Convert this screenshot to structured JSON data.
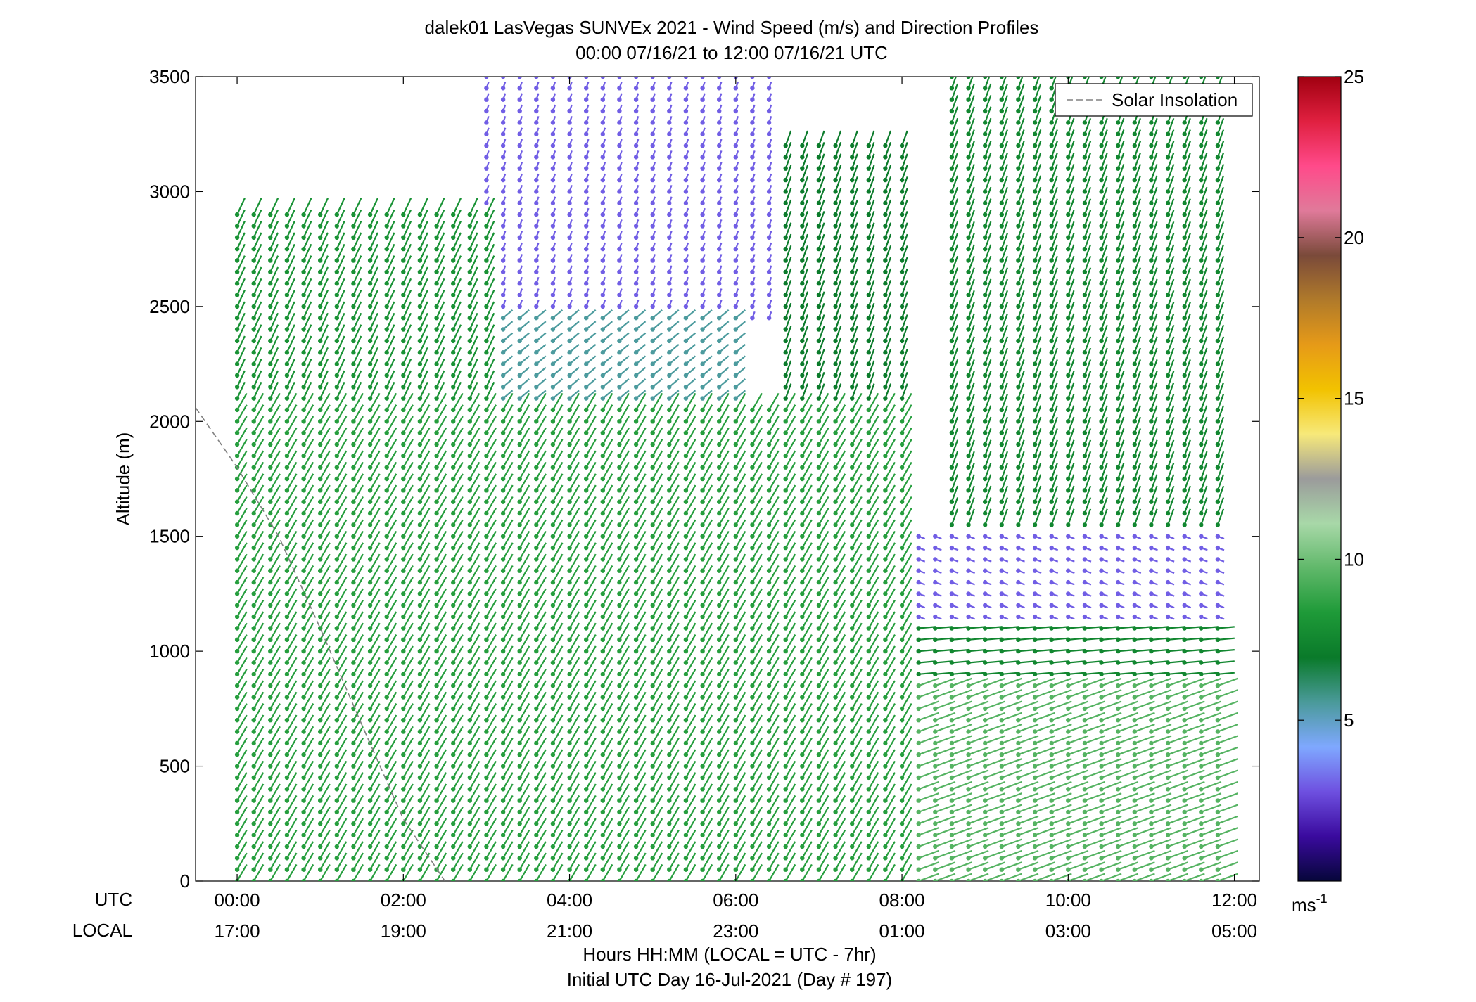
{
  "chart_data": {
    "type": "scatter",
    "subtype": "wind-barb-profile",
    "title_line1": "dalek01 LasVegas SUNVEx 2021 - Wind Speed (m/s) and Direction Profiles",
    "title_line2": "00:00 07/16/21 to 12:00 07/16/21  UTC",
    "ylabel": "Altitude (m)",
    "xlabel_line1": "Hours HH:MM  (LOCAL = UTC - 7hr)",
    "xlabel_line2": "Initial UTC Day 16-Jul-2021 (Day # 197)",
    "utc_row_label": "UTC",
    "local_row_label": "LOCAL",
    "xlim_hours": [
      -0.5,
      12.3
    ],
    "ylim": [
      0,
      3500
    ],
    "yticks": [
      "0",
      "500",
      "1000",
      "1500",
      "2000",
      "2500",
      "3000",
      "3500"
    ],
    "utc_ticks": [
      "00:00",
      "02:00",
      "04:00",
      "06:00",
      "08:00",
      "10:00",
      "12:00"
    ],
    "local_ticks": [
      "17:00",
      "19:00",
      "21:00",
      "23:00",
      "01:00",
      "03:00",
      "05:00"
    ],
    "tick_hours": [
      0,
      2,
      4,
      6,
      8,
      10,
      12
    ],
    "profile_start_hour": 0,
    "profile_interval_hours": 0.2,
    "profile_count": 60,
    "altitude_step_m": 50,
    "legend": {
      "position": "top-right",
      "label": "Solar Insolation"
    },
    "solar_insolation_line": {
      "hours": [
        -0.5,
        0.0,
        0.5,
        1.0,
        1.5,
        2.0,
        2.5
      ],
      "altitude": [
        2060,
        1800,
        1500,
        1100,
        680,
        270,
        0
      ],
      "color": "#808080",
      "style": "dashed"
    },
    "colorbar": {
      "min": 0,
      "max": 25,
      "ticks": [
        "5",
        "10",
        "15",
        "20",
        "25"
      ],
      "unit": "ms",
      "unit_exponent": "-1",
      "colormap": [
        "#06063a",
        "#3a0a9e",
        "#6e50e0",
        "#7fa8ff",
        "#4a9a9a",
        "#0a7a2a",
        "#1e9a38",
        "#60b86a",
        "#a8d8a8",
        "#9b9b9b",
        "#f7e97a",
        "#f2c200",
        "#e69a18",
        "#b07a2a",
        "#7a4a3a",
        "#e07a9a",
        "#ff4a8a",
        "#e02040",
        "#a00010"
      ]
    },
    "regimes": [
      {
        "hours": [
          0.0,
          8.0
        ],
        "altitude": [
          0,
          2050
        ],
        "speed_ms": 8.5,
        "direction_deg": 210
      },
      {
        "hours": [
          0.0,
          3.0
        ],
        "altitude": [
          2050,
          2900
        ],
        "speed_ms": 8.0,
        "direction_deg": 205
      },
      {
        "hours": [
          3.0,
          6.0
        ],
        "altitude": [
          2050,
          2450
        ],
        "speed_ms": 5.5,
        "direction_deg": 230
      },
      {
        "hours": [
          3.0,
          6.5
        ],
        "altitude": [
          2450,
          3500
        ],
        "speed_ms": 3.0,
        "direction_deg": 200
      },
      {
        "hours": [
          6.5,
          8.0
        ],
        "altitude": [
          2050,
          3200
        ],
        "speed_ms": 7.0,
        "direction_deg": 200
      },
      {
        "hours": [
          8.0,
          12.3
        ],
        "altitude": [
          0,
          850
        ],
        "speed_ms": 9.5,
        "direction_deg": 250
      },
      {
        "hours": [
          8.0,
          12.3
        ],
        "altitude": [
          850,
          1100
        ],
        "speed_ms": 7.5,
        "direction_deg": 265
      },
      {
        "hours": [
          8.0,
          12.3
        ],
        "altitude": [
          1100,
          1500
        ],
        "speed_ms": 3.0,
        "direction_deg": 290
      },
      {
        "hours": [
          8.5,
          12.3
        ],
        "altitude": [
          1500,
          3500
        ],
        "speed_ms": 7.5,
        "direction_deg": 200
      }
    ]
  }
}
